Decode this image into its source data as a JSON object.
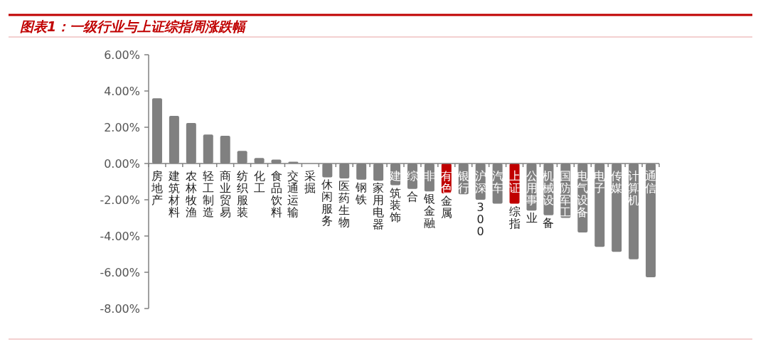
{
  "chart_data": {
    "type": "bar",
    "title": "图表1：一级行业与上证综指周涨跌幅",
    "categories": [
      "房地产",
      "建筑材料",
      "农林牧渔",
      "轻工制造",
      "商业贸易",
      "纺织服装",
      "化工",
      "食品饮料",
      "交通运输",
      "采掘",
      "休闲服务",
      "医药生物",
      "钢铁",
      "家用电器",
      "建筑装饰",
      "综合",
      "非银金融",
      "有色金属",
      "银行",
      "沪深300",
      "汽车",
      "上证综指",
      "公用事业",
      "机械设备",
      "国防军工",
      "电气设备",
      "电子",
      "传媒",
      "计算机",
      "通信"
    ],
    "values": [
      3.6,
      2.63,
      2.24,
      1.6,
      1.53,
      0.7,
      0.3,
      0.22,
      0.1,
      0.0,
      -0.76,
      -0.82,
      -0.89,
      -0.95,
      -1.2,
      -1.4,
      -1.54,
      -1.65,
      -1.7,
      -2.0,
      -2.22,
      -2.22,
      -2.6,
      -2.85,
      -3.0,
      -3.8,
      -4.6,
      -4.87,
      -5.28,
      -6.27
    ],
    "colors": [
      "#808080",
      "#808080",
      "#808080",
      "#808080",
      "#808080",
      "#808080",
      "#808080",
      "#808080",
      "#808080",
      "#808080",
      "#808080",
      "#808080",
      "#808080",
      "#808080",
      "#808080",
      "#808080",
      "#808080",
      "#c00000",
      "#808080",
      "#808080",
      "#808080",
      "#c00000",
      "#808080",
      "#808080",
      "#808080",
      "#808080",
      "#808080",
      "#808080",
      "#808080",
      "#808080"
    ],
    "ylim": [
      -8,
      6
    ],
    "yticks": [
      {
        "value": -8,
        "label": "-8.00%"
      },
      {
        "value": -6,
        "label": "-6.00%"
      },
      {
        "value": -4,
        "label": "-4.00%"
      },
      {
        "value": -2,
        "label": "-2.00%"
      },
      {
        "value": 0,
        "label": "0.00%"
      },
      {
        "value": 2,
        "label": "2.00%"
      },
      {
        "value": 4,
        "label": "4.00%"
      },
      {
        "value": 6,
        "label": "6.00%"
      }
    ]
  }
}
